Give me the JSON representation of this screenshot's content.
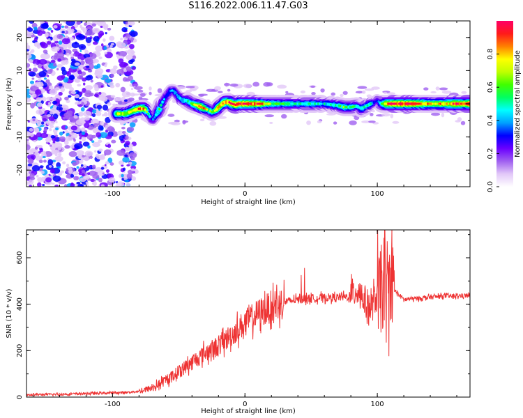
{
  "title": "S116.2022.006.11.47.G03",
  "colors": {
    "snr_line": "#ee3333",
    "cmap": [
      "#ffffff",
      "#e2c8f8",
      "#a060f0",
      "#6a00ff",
      "#0000ff",
      "#00a0ff",
      "#00ffff",
      "#00ff60",
      "#40ff00",
      "#c0ff00",
      "#ffff00",
      "#ff8000",
      "#ff1a1a",
      "#ff0066"
    ]
  },
  "chart_data": [
    {
      "type": "heatmap",
      "xlabel": "Height of straight line (km)",
      "ylabel": "Frequency (Hz)",
      "xlim": [
        -165,
        170
      ],
      "ylim": [
        -25,
        25
      ],
      "xticks": [
        -100,
        0,
        100
      ],
      "yticks": [
        -20,
        -10,
        0,
        10,
        20
      ],
      "colorbar": {
        "label": "Normalized spectral amplitude",
        "range": [
          0,
          1
        ],
        "ticks": [
          0.0,
          0.2,
          0.4,
          0.6,
          0.8
        ]
      },
      "ridge": {
        "x": [
          -97,
          -90,
          -84,
          -80,
          -76,
          -73,
          -70,
          -68,
          -65,
          -63,
          -60,
          -58,
          -56,
          -54,
          -52,
          -50,
          -47,
          -44,
          -40,
          -36,
          -33,
          -30,
          -27,
          -25,
          -22,
          -20,
          -17,
          -15,
          -12,
          -10,
          -7,
          -5,
          -2,
          0,
          5,
          10,
          20,
          30,
          40,
          50,
          60,
          70,
          75,
          80,
          84,
          86,
          88,
          90,
          95,
          98,
          100,
          103,
          106,
          110,
          120,
          130,
          140,
          150,
          160,
          170
        ],
        "y": [
          -3,
          -3,
          -2,
          -1.5,
          -1.5,
          -3,
          -5,
          -4,
          -2,
          0,
          2,
          3,
          4,
          4,
          3,
          2,
          1,
          1,
          0,
          -0.5,
          -1,
          -1.5,
          -2,
          -2.5,
          -2,
          -1,
          0,
          0.5,
          0.5,
          0,
          -0.3,
          0,
          0,
          0,
          0,
          0,
          0,
          0,
          0,
          0,
          0,
          -0.5,
          -1,
          -1,
          -0.7,
          -1,
          -1.5,
          -1,
          0,
          0.5,
          1,
          0,
          0,
          0,
          0,
          0,
          0,
          0,
          0,
          0
        ],
        "amplitude": [
          0.7,
          0.7,
          0.8,
          0.85,
          0.85,
          0.5,
          0.3,
          0.4,
          0.6,
          0.5,
          0.35,
          0.35,
          0.4,
          0.4,
          0.4,
          0.45,
          0.45,
          0.5,
          0.6,
          0.75,
          0.9,
          0.75,
          0.6,
          0.6,
          0.7,
          0.8,
          0.85,
          0.9,
          0.95,
          0.95,
          0.95,
          0.95,
          0.95,
          0.95,
          0.95,
          0.9,
          0.6,
          0.55,
          0.5,
          0.5,
          0.45,
          0.5,
          0.6,
          0.55,
          0.5,
          0.45,
          0.45,
          0.5,
          0.5,
          0.3,
          0.3,
          0.5,
          0.85,
          0.95,
          0.95,
          0.9,
          0.75,
          0.8,
          0.95,
          0.95
        ]
      }
    },
    {
      "type": "line",
      "xlabel": "Height of straight line (km)",
      "ylabel": "SNR (10 * v/v)",
      "xlim": [
        -165,
        170
      ],
      "ylim": [
        0,
        720
      ],
      "xticks": [
        -100,
        0,
        100
      ],
      "yticks": [
        0,
        200,
        400,
        600
      ],
      "series": [
        {
          "x": [
            -165,
            -140,
            -120,
            -100,
            -90,
            -80,
            -70,
            -60,
            -50,
            -40,
            -30,
            -20,
            -10,
            0,
            10,
            20,
            30,
            40,
            50,
            60,
            70,
            80,
            85,
            88,
            92,
            95,
            100,
            103,
            105,
            107,
            110,
            113,
            120,
            130,
            140,
            150,
            160,
            170
          ],
          "y": [
            10,
            12,
            15,
            18,
            20,
            25,
            40,
            70,
            110,
            150,
            190,
            220,
            270,
            320,
            360,
            390,
            410,
            420,
            425,
            428,
            430,
            432,
            470,
            440,
            400,
            380,
            440,
            440,
            510,
            400,
            520,
            460,
            420,
            425,
            430,
            435,
            435,
            438
          ]
        }
      ]
    }
  ]
}
